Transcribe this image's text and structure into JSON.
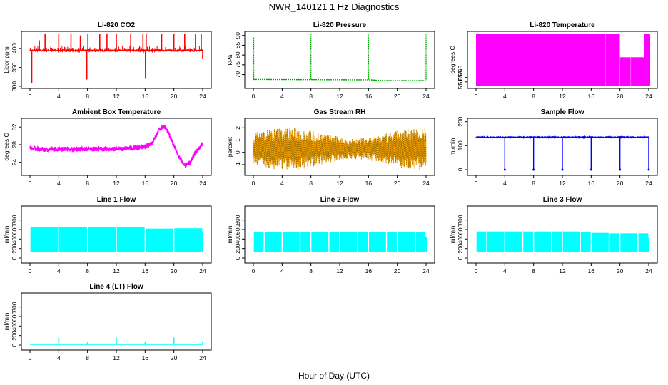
{
  "title": "NWR_140121  1 Hz Diagnostics",
  "xlabel": "Hour of Day (UTC)",
  "chart_data": [
    {
      "type": "line",
      "title": "Li-820 CO2",
      "ylabel": "Licor ppm",
      "color": "#ff0000",
      "xlim": [
        0,
        24
      ],
      "ylim": [
        300,
        440
      ],
      "yticks": [
        300,
        350,
        400
      ],
      "xticks": [
        0,
        4,
        8,
        12,
        16,
        20,
        24
      ],
      "series": [
        {
          "pattern": "spikes",
          "baseline": 395,
          "noise": 2,
          "events": [
            {
              "x": 0.25,
              "y": 308
            },
            {
              "x": 1.3,
              "y": 422
            },
            {
              "x": 2.1,
              "y": 440
            },
            {
              "x": 4.0,
              "y": 440
            },
            {
              "x": 5.7,
              "y": 440
            },
            {
              "x": 7.0,
              "y": 435
            },
            {
              "x": 7.9,
              "y": 318
            },
            {
              "x": 8.05,
              "y": 440
            },
            {
              "x": 9.7,
              "y": 440
            },
            {
              "x": 10.7,
              "y": 440
            },
            {
              "x": 12.0,
              "y": 440
            },
            {
              "x": 14.0,
              "y": 440
            },
            {
              "x": 15.7,
              "y": 440
            },
            {
              "x": 16.05,
              "y": 320
            },
            {
              "x": 16.15,
              "y": 440
            },
            {
              "x": 18.3,
              "y": 440
            },
            {
              "x": 20.0,
              "y": 440
            },
            {
              "x": 21.5,
              "y": 440
            },
            {
              "x": 23.0,
              "y": 440
            },
            {
              "x": 23.8,
              "y": 440
            },
            {
              "x": 24.0,
              "y": 372
            }
          ]
        }
      ]
    },
    {
      "type": "line",
      "title": "Li-820 Pressure",
      "ylabel": "kPa",
      "color": "#00aa00",
      "xlim": [
        0,
        24
      ],
      "ylim": [
        64,
        91
      ],
      "yticks": [
        70,
        75,
        80,
        85,
        90
      ],
      "xticks": [
        0,
        4,
        8,
        12,
        16,
        20,
        24
      ],
      "series": [
        {
          "pattern": "steps",
          "segments": [
            [
              0,
              67.5
            ],
            [
              16.2,
              67.3
            ],
            [
              18.2,
              66.9
            ],
            [
              24,
              66.9
            ]
          ],
          "events": [
            {
              "x": 0.05,
              "y": 89
            },
            {
              "x": 8.0,
              "y": 91
            },
            {
              "x": 16.0,
              "y": 91
            },
            {
              "x": 24.0,
              "y": 91
            }
          ]
        }
      ]
    },
    {
      "type": "area",
      "title": "Li-820 Temperature",
      "ylabel": "degrees C",
      "color": "#ff00ff",
      "xlim": [
        0,
        24
      ],
      "ylim": [
        51.648,
        51.636
      ],
      "yticks": [
        51.645,
        51.646,
        51.647
      ],
      "ytick_labels": [
        "51.65",
        "51.65",
        "51.65"
      ],
      "xticks": [
        0,
        4,
        8,
        12,
        16,
        20,
        24
      ],
      "series": [
        {
          "pattern": "band",
          "bands": [
            [
              0,
              20,
              0,
              1
            ],
            [
              20,
              21.5,
              0,
              0.55
            ],
            [
              21.5,
              23.4,
              0,
              0.55
            ],
            [
              23.4,
              23.7,
              0,
              1
            ],
            [
              23.7,
              24.1,
              0,
              0.55
            ],
            [
              23.8,
              24.2,
              0,
              1
            ]
          ]
        }
      ]
    },
    {
      "type": "line",
      "title": "Ambient Box Temperature",
      "ylabel": "degrees C",
      "color": "#ff00ff",
      "xlim": [
        0,
        24
      ],
      "ylim": [
        21.5,
        33.5
      ],
      "yticks": [
        24,
        28,
        32
      ],
      "xticks": [
        0,
        4,
        8,
        12,
        16,
        20,
        24
      ],
      "series": [
        {
          "pattern": "curve",
          "noise": 0.55,
          "points": [
            [
              0,
              27.2
            ],
            [
              2,
              26.9
            ],
            [
              4,
              27.0
            ],
            [
              8,
              27.0
            ],
            [
              12,
              27.0
            ],
            [
              14,
              27.2
            ],
            [
              16,
              27.5
            ],
            [
              17,
              28.5
            ],
            [
              18,
              31.5
            ],
            [
              18.7,
              32.2
            ],
            [
              19.5,
              29.8
            ],
            [
              20.5,
              25.8
            ],
            [
              21.5,
              23.2
            ],
            [
              22.3,
              24.0
            ],
            [
              23,
              26.2
            ],
            [
              24,
              28.2
            ]
          ]
        }
      ]
    },
    {
      "type": "line",
      "title": "Gas Stream RH",
      "ylabel": "percent",
      "color": "#ffa500",
      "xlim": [
        0,
        24
      ],
      "ylim": [
        -1.7,
        2.6
      ],
      "yticks": [
        -1,
        0,
        1,
        2
      ],
      "xticks": [
        0,
        4,
        8,
        12,
        16,
        20,
        24
      ],
      "series": [
        {
          "pattern": "noise",
          "center": 0.3,
          "amp": 1.25
        }
      ]
    },
    {
      "type": "line",
      "title": "Sample Flow",
      "ylabel": "ml/min",
      "color": "#0000ff",
      "xlim": [
        0,
        24
      ],
      "ylim": [
        -15,
        205
      ],
      "yticks": [
        0,
        100,
        200
      ],
      "xticks": [
        0,
        4,
        8,
        12,
        16,
        20,
        24
      ],
      "series": [
        {
          "pattern": "dips",
          "baseline": 135,
          "noise": 2,
          "events": [
            4,
            8,
            12,
            16,
            20,
            24
          ],
          "dip": 0
        }
      ]
    },
    {
      "type": "area",
      "title": "Line 1 Flow",
      "ylabel": "ml/min",
      "color": "#00ffff",
      "xlim": [
        0,
        24
      ],
      "ylim": [
        -60,
        1050
      ],
      "yticks": [
        0,
        200,
        400,
        600,
        800
      ],
      "xticks": [
        0,
        4,
        8,
        12,
        16,
        20,
        24
      ],
      "series": [
        {
          "pattern": "band",
          "low": 120,
          "high": 660,
          "gaps": [
            4,
            8,
            12,
            16,
            20,
            24
          ],
          "levels": [
            [
              0,
              660
            ],
            [
              14,
              660
            ],
            [
              18,
              620
            ],
            [
              24,
              630
            ]
          ]
        }
      ]
    },
    {
      "type": "area",
      "title": "Line 2 Flow",
      "ylabel": "ml/min",
      "color": "#00ffff",
      "xlim": [
        0,
        24
      ],
      "ylim": [
        -60,
        1050
      ],
      "yticks": [
        0,
        200,
        400,
        600,
        800
      ],
      "xticks": [
        0,
        4,
        8,
        12,
        16,
        20,
        24
      ],
      "series": [
        {
          "pattern": "band",
          "low": 120,
          "high": 555,
          "gaps": [
            1.5,
            4,
            6.5,
            8,
            10.5,
            12,
            14.5,
            16,
            18.5,
            20,
            22.5,
            24
          ],
          "levels": [
            [
              0,
              555
            ],
            [
              12,
              555
            ],
            [
              17,
              545
            ],
            [
              24,
              540
            ]
          ]
        }
      ]
    },
    {
      "type": "area",
      "title": "Line 3 Flow",
      "ylabel": "ml/min",
      "color": "#00ffff",
      "xlim": [
        0,
        24
      ],
      "ylim": [
        -60,
        1050
      ],
      "yticks": [
        0,
        200,
        400,
        600,
        800
      ],
      "xticks": [
        0,
        4,
        8,
        12,
        16,
        20,
        24
      ],
      "series": [
        {
          "pattern": "band",
          "low": 120,
          "high": 560,
          "gaps": [
            1.5,
            4,
            6.5,
            8,
            10.5,
            12,
            14.5,
            16,
            18.5,
            20,
            22.5,
            24
          ],
          "levels": [
            [
              0,
              560
            ],
            [
              14,
              560
            ],
            [
              16,
              545
            ],
            [
              18,
              520
            ],
            [
              24,
              520
            ]
          ]
        }
      ]
    },
    {
      "type": "line",
      "title": "Line 4 (LT) Flow",
      "ylabel": "ml/min",
      "color": "#00ffff",
      "xlim": [
        0,
        24
      ],
      "ylim": [
        -60,
        1050
      ],
      "yticks": [
        0,
        200,
        400,
        600,
        800
      ],
      "xticks": [
        0,
        4,
        8,
        12,
        16,
        20,
        24
      ],
      "series": [
        {
          "pattern": "spikes",
          "baseline": 15,
          "noise": 0,
          "events": [
            {
              "x": 4,
              "y": 160
            },
            {
              "x": 8,
              "y": 65
            },
            {
              "x": 12,
              "y": 160
            },
            {
              "x": 16,
              "y": 60
            },
            {
              "x": 20,
              "y": 160
            },
            {
              "x": 24,
              "y": 60
            }
          ]
        }
      ]
    }
  ]
}
